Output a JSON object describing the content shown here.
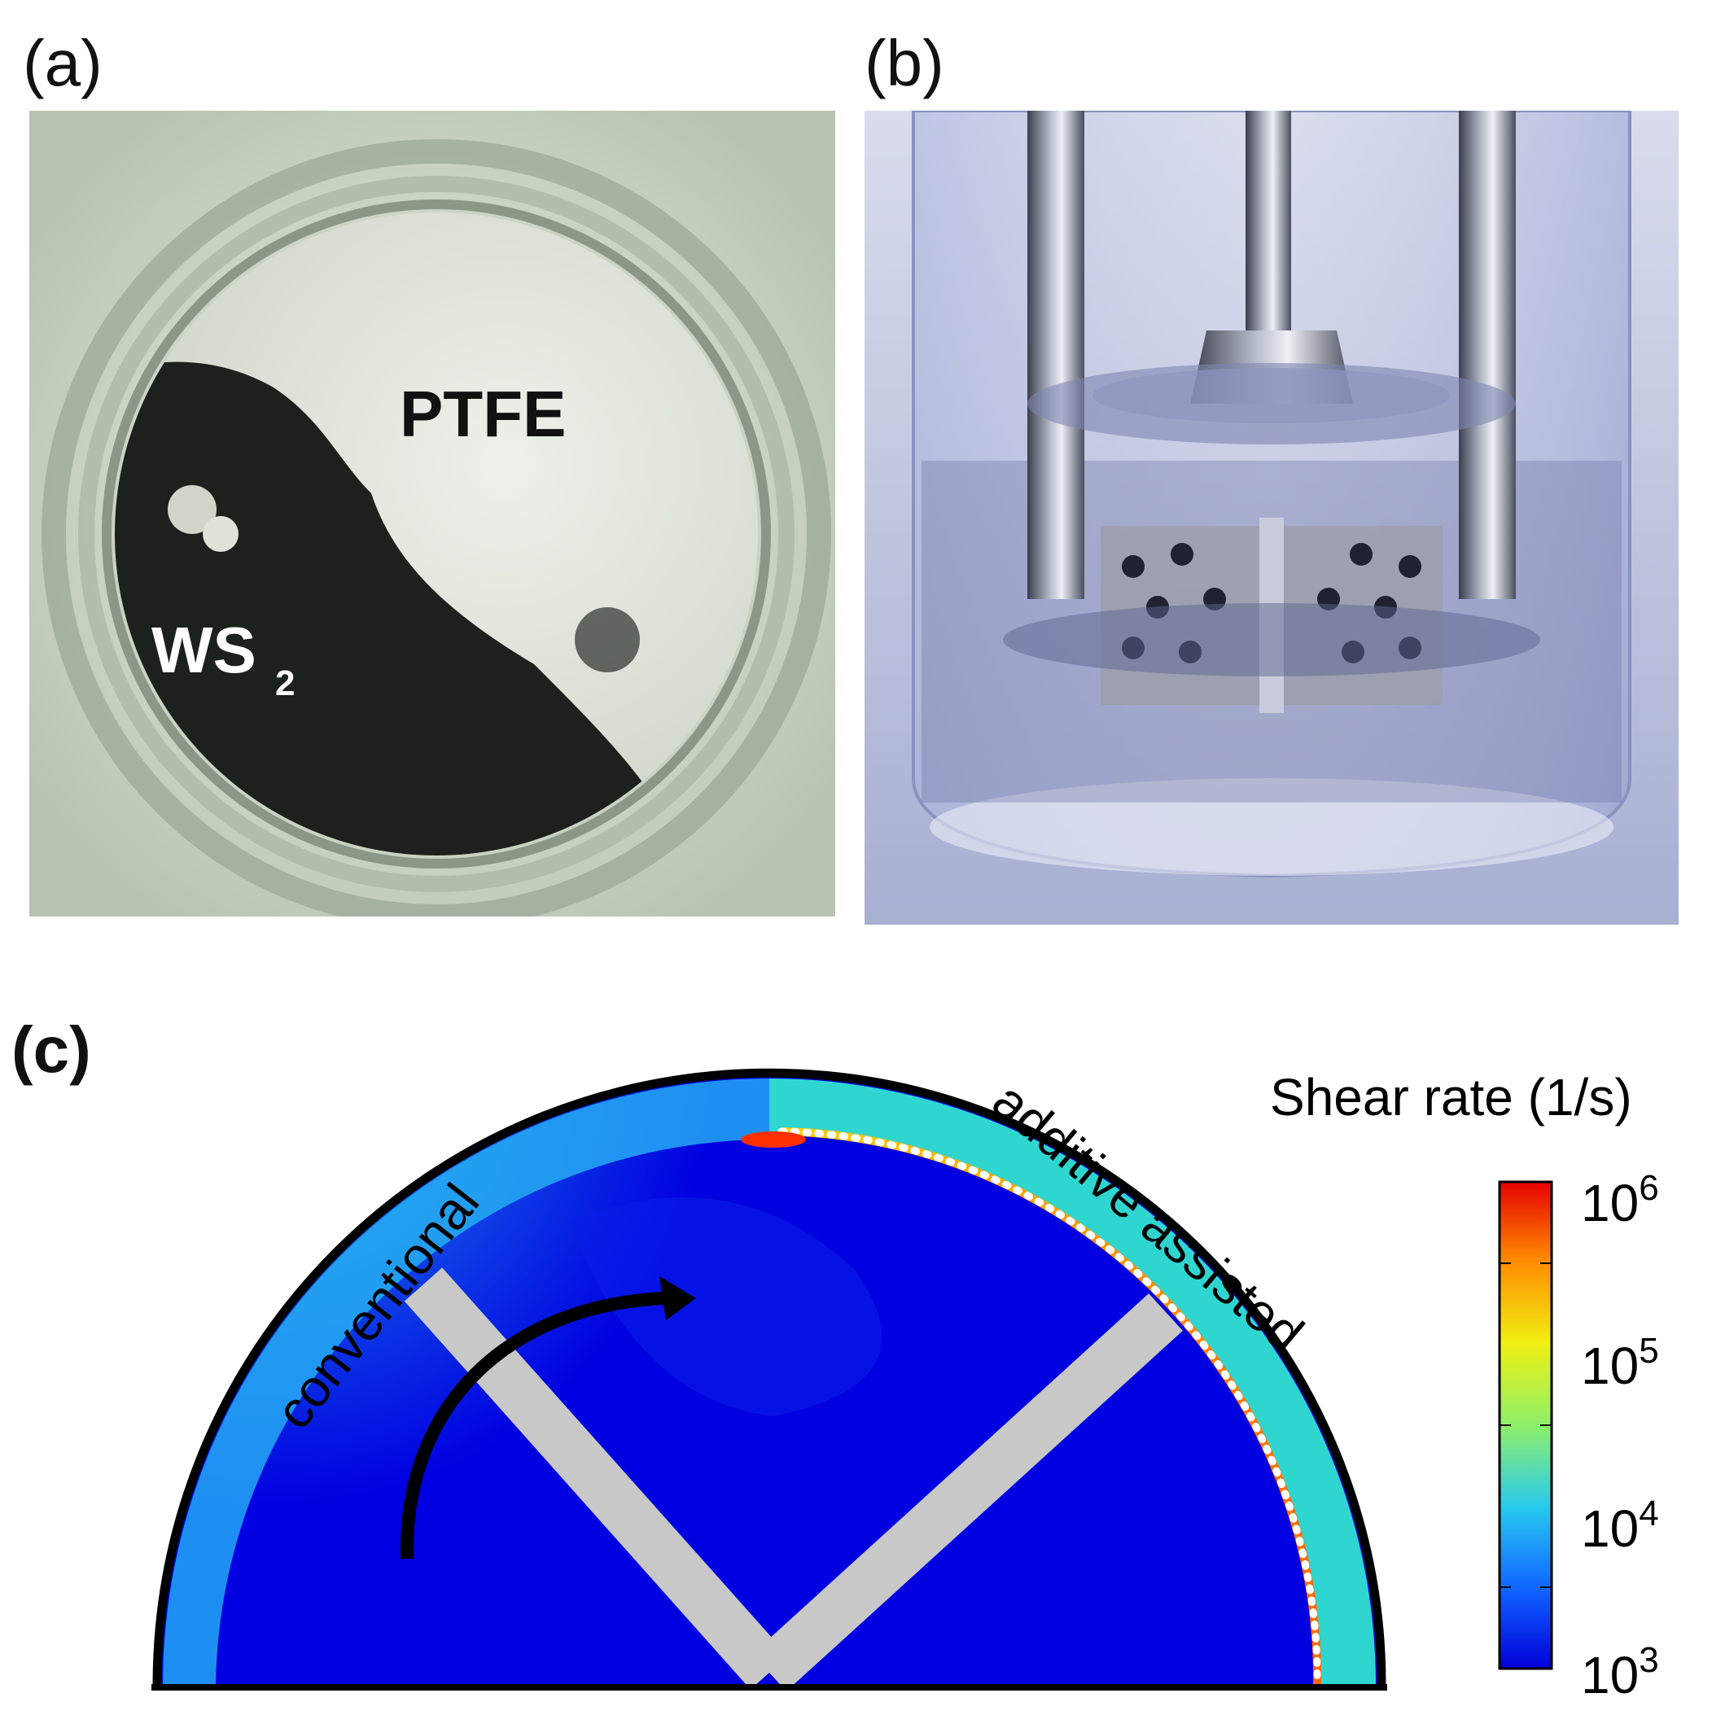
{
  "panels": {
    "a": {
      "label": "(a)",
      "text_ptfe": "PTFE",
      "text_ws_main": "WS",
      "text_ws_sub": "2"
    },
    "b": {
      "label": "(b)"
    },
    "c": {
      "label": "(c)",
      "text_left": "conventional",
      "text_right": "additive assisted"
    }
  },
  "colorbar": {
    "title": "Shear rate (1/s)",
    "ticks": [
      {
        "base": "10",
        "exp": "6"
      },
      {
        "base": "10",
        "exp": "5"
      },
      {
        "base": "10",
        "exp": "4"
      },
      {
        "base": "10",
        "exp": "3"
      }
    ],
    "colors": [
      "#0000d9",
      "#0f62ff",
      "#27c9ef",
      "#8ef06a",
      "#f1ef12",
      "#ff8a00",
      "#e60000"
    ],
    "scale": "log"
  }
}
